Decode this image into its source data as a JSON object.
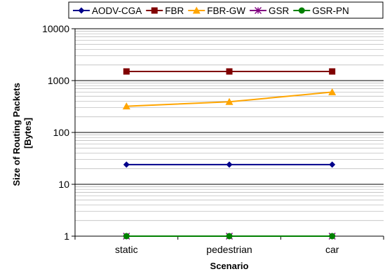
{
  "chart_data": {
    "type": "line",
    "title": "",
    "xlabel": "Scenario",
    "ylabel": [
      "Size of Routing Packets",
      "[Bytes]"
    ],
    "categories": [
      "static",
      "pedestrian",
      "car"
    ],
    "y_scale": "log",
    "ylim": [
      1,
      10000
    ],
    "y_ticks": [
      "1",
      "10",
      "100",
      "1000",
      "10000"
    ],
    "grid": true,
    "legend_position": "top",
    "series": [
      {
        "name": "AODV-CGA",
        "values": [
          24,
          24,
          24
        ],
        "color": "#00008B",
        "marker": "diamond"
      },
      {
        "name": "FBR",
        "values": [
          1500,
          1500,
          1500
        ],
        "color": "#800000",
        "marker": "square"
      },
      {
        "name": "FBR-GW",
        "values": [
          320,
          390,
          600
        ],
        "color": "#FFA500",
        "marker": "triangle"
      },
      {
        "name": "GSR",
        "values": [
          1,
          1,
          1
        ],
        "color": "#800080",
        "marker": "asterisk"
      },
      {
        "name": "GSR-PN",
        "values": [
          1,
          1,
          1
        ],
        "color": "#008000",
        "marker": "circle"
      }
    ]
  }
}
